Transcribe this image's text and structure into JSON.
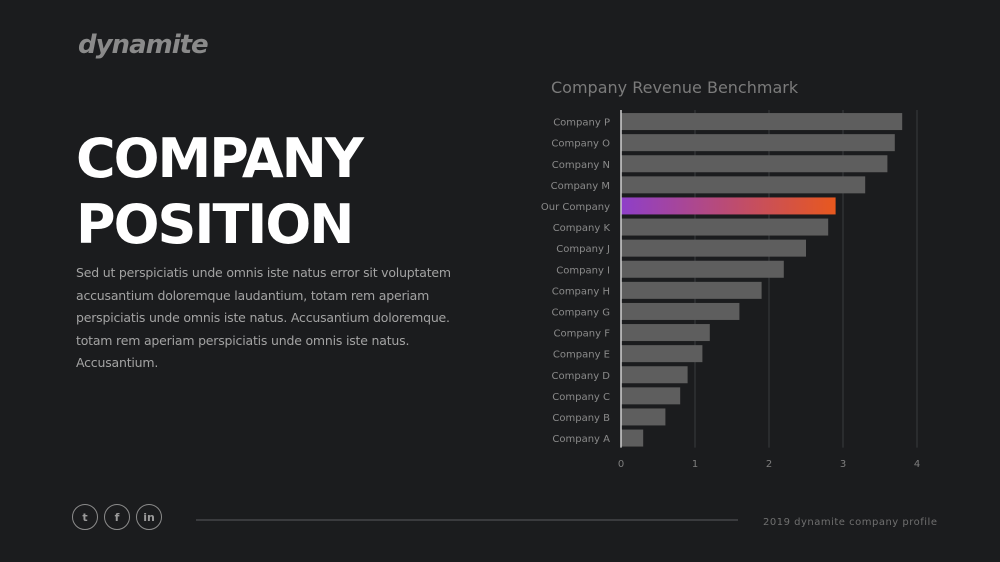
{
  "brand": {
    "logo_text": "dynamite"
  },
  "headline": {
    "line1": "COMPANY",
    "line2": "POSITION"
  },
  "body_text": "Sed ut perspiciatis unde omnis iste natus error sit voluptatem accusantium doloremque laudantium, totam rem aperiam perspiciatis unde omnis iste natus. Accusantium doloremque. totam rem aperiam perspiciatis unde omnis iste natus. Accusantium.",
  "social": [
    {
      "name": "twitter",
      "glyph": "t"
    },
    {
      "name": "facebook",
      "glyph": "f"
    },
    {
      "name": "linkedin",
      "glyph": "in"
    }
  ],
  "footer": {
    "text": "2019 dynamite company profile"
  },
  "colors": {
    "background": "#1b1c1e",
    "bar": "#5e5e5e",
    "highlight_start": "#8e3fc9",
    "highlight_end": "#e8581e",
    "grid": "#3a3b3e"
  },
  "chart_data": {
    "type": "bar",
    "orientation": "horizontal",
    "title": "Company Revenue Benchmark",
    "categories": [
      "Company P",
      "Company O",
      "Company N",
      "Company M",
      "Our Company",
      "Company K",
      "Company J",
      "Company I",
      "Company H",
      "Company G",
      "Company F",
      "Company E",
      "Company D",
      "Company C",
      "Company B",
      "Company A"
    ],
    "values": [
      3.8,
      3.7,
      3.6,
      3.3,
      2.9,
      2.8,
      2.5,
      2.2,
      1.9,
      1.6,
      1.2,
      1.1,
      0.9,
      0.8,
      0.6,
      0.3
    ],
    "highlight": "Our Company",
    "xlim": [
      0,
      4
    ],
    "xticks": [
      0,
      1,
      2,
      3,
      4
    ],
    "xlabel": "",
    "ylabel": "",
    "grid": "vertical",
    "legend": "none"
  }
}
